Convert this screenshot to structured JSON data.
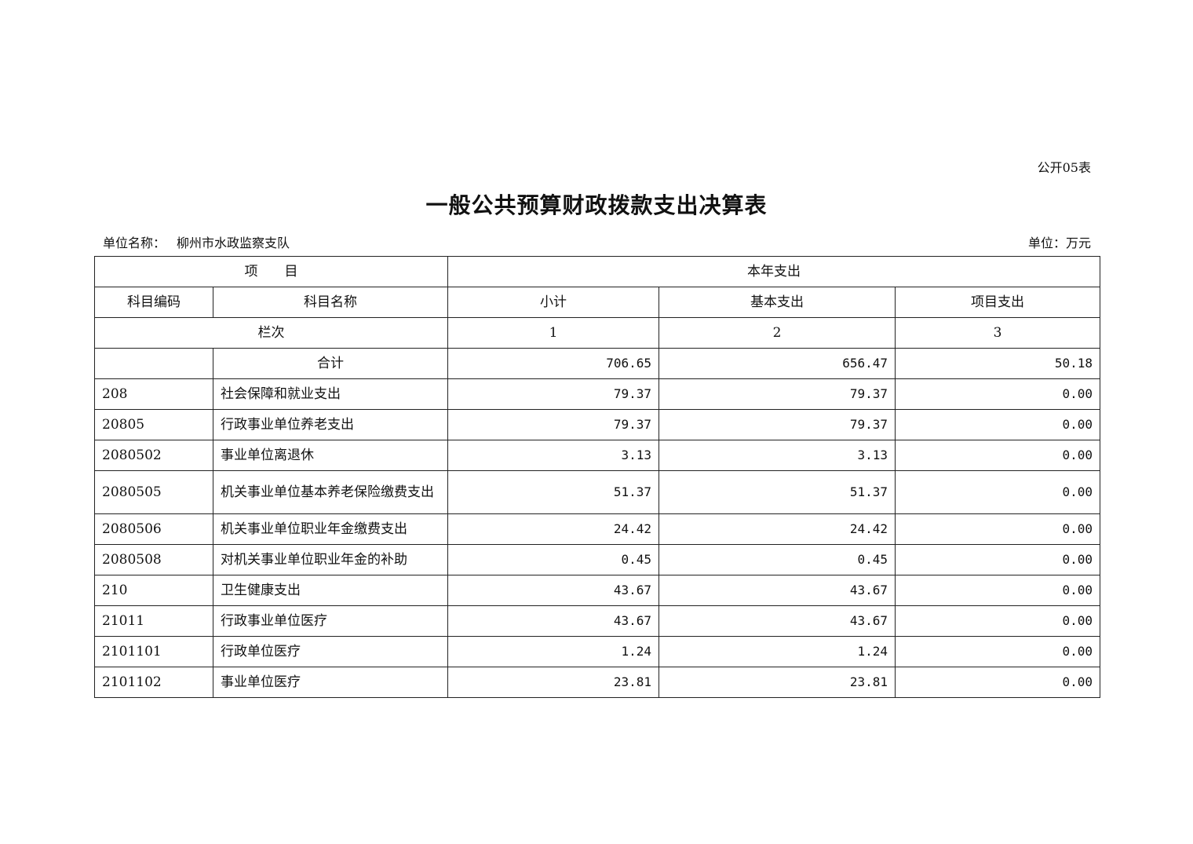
{
  "form_no": "公开05表",
  "title": "一般公共预算财政拨款支出决算表",
  "unit_name_label": "单位名称：",
  "unit_name": "柳州市水政监察支队",
  "unit": "单位：万元",
  "header": {
    "project": "项　　目",
    "this_year": "本年支出",
    "code": "科目编码",
    "name": "科目名称",
    "subtotal": "小计",
    "basic": "基本支出",
    "project_exp": "项目支出",
    "column_index": "栏次",
    "col1": "1",
    "col2": "2",
    "col3": "3"
  },
  "total": {
    "label": "合计",
    "subtotal": "706.65",
    "basic": "656.47",
    "project": "50.18"
  },
  "rows": [
    {
      "code": "208",
      "name": "社会保障和就业支出",
      "subtotal": "79.37",
      "basic": "79.37",
      "project": "0.00"
    },
    {
      "code": "20805",
      "name": "行政事业单位养老支出",
      "subtotal": "79.37",
      "basic": "79.37",
      "project": "0.00"
    },
    {
      "code": "2080502",
      "name": "事业单位离退休",
      "subtotal": "3.13",
      "basic": "3.13",
      "project": "0.00"
    },
    {
      "code": "2080505",
      "name": "机关事业单位基本养老保险缴费支出",
      "subtotal": "51.37",
      "basic": "51.37",
      "project": "0.00"
    },
    {
      "code": "2080506",
      "name": "机关事业单位职业年金缴费支出",
      "subtotal": "24.42",
      "basic": "24.42",
      "project": "0.00"
    },
    {
      "code": "2080508",
      "name": "对机关事业单位职业年金的补助",
      "subtotal": "0.45",
      "basic": "0.45",
      "project": "0.00"
    },
    {
      "code": "210",
      "name": "卫生健康支出",
      "subtotal": "43.67",
      "basic": "43.67",
      "project": "0.00"
    },
    {
      "code": "21011",
      "name": "行政事业单位医疗",
      "subtotal": "43.67",
      "basic": "43.67",
      "project": "0.00"
    },
    {
      "code": "2101101",
      "name": "行政单位医疗",
      "subtotal": "1.24",
      "basic": "1.24",
      "project": "0.00"
    },
    {
      "code": "2101102",
      "name": "事业单位医疗",
      "subtotal": "23.81",
      "basic": "23.81",
      "project": "0.00"
    }
  ]
}
